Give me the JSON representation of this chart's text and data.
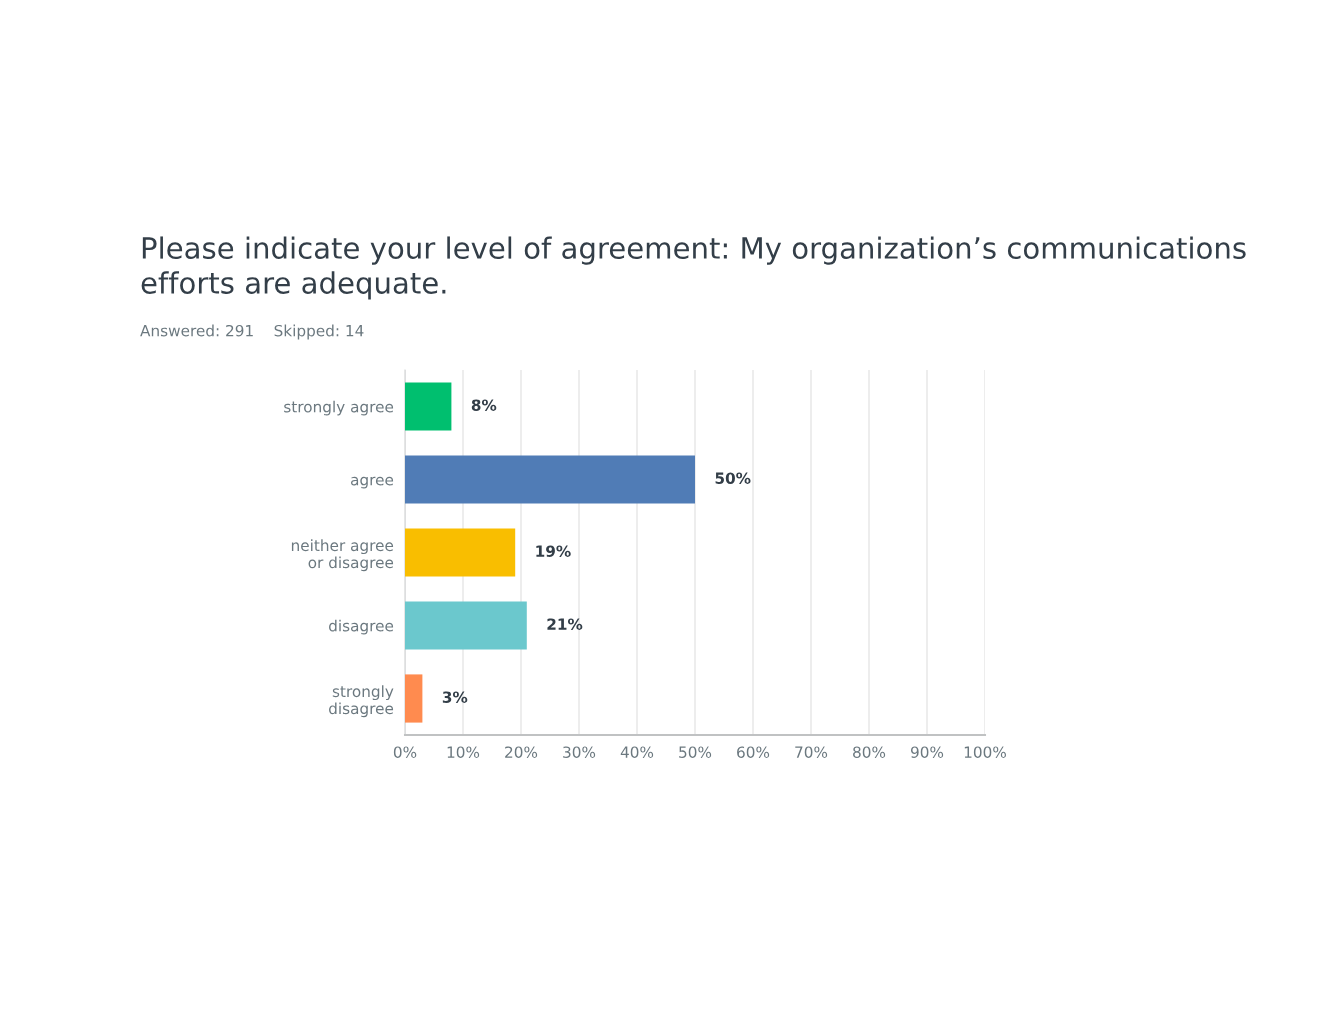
{
  "chart_data": {
    "type": "bar",
    "orientation": "horizontal",
    "title": "Please indicate your level of agreement: My organization’s communications efforts are adequate.",
    "subtitle": "Answered: 291    Skipped: 14",
    "categories": [
      "strongly agree",
      "agree",
      "neither agree\nor disagree",
      "disagree",
      "strongly\ndisagree"
    ],
    "values": [
      8,
      50,
      19,
      21,
      3
    ],
    "colors": [
      "#00bf6f",
      "#507cb6",
      "#f9be00",
      "#6bc8cd",
      "#ff8b4f"
    ],
    "value_labels": [
      "8%",
      "50%",
      "19%",
      "21%",
      "3%"
    ],
    "xlim": [
      0,
      100
    ],
    "xticks": [
      {
        "value": 0,
        "label": "0%"
      },
      {
        "value": 10,
        "label": "10%"
      },
      {
        "value": 20,
        "label": "20%"
      },
      {
        "value": 30,
        "label": "30%"
      },
      {
        "value": 40,
        "label": "40%"
      },
      {
        "value": 50,
        "label": "50%"
      },
      {
        "value": 60,
        "label": "60%"
      },
      {
        "value": 70,
        "label": "70%"
      },
      {
        "value": 80,
        "label": "80%"
      },
      {
        "value": 90,
        "label": "90%"
      },
      {
        "value": 100,
        "label": "100%"
      }
    ],
    "grid": "x",
    "legend": false
  }
}
